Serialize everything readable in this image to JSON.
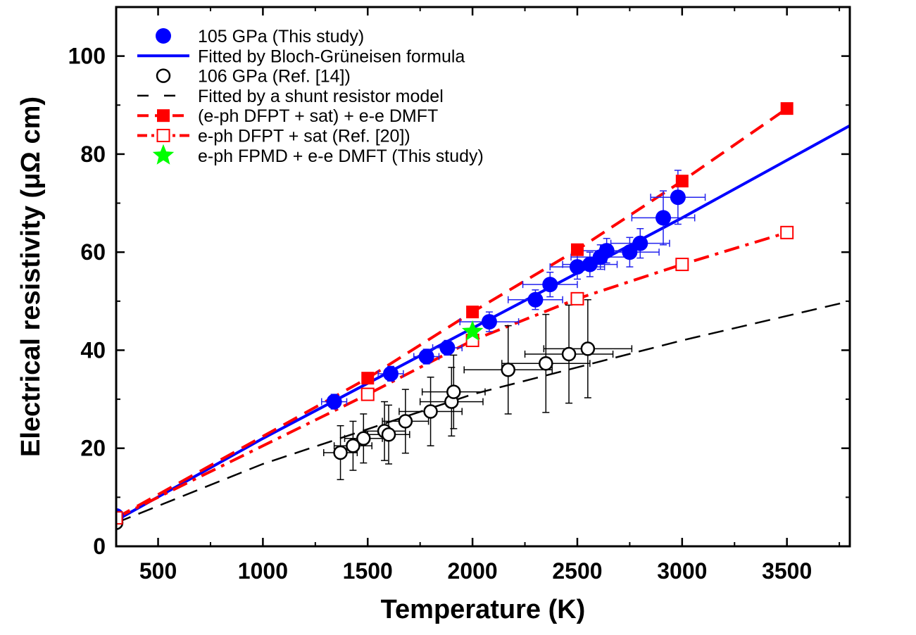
{
  "chart_data": {
    "type": "scatter",
    "xlabel": "Temperature (K)",
    "ylabel": "Electrical resistivity (μΩ cm)",
    "xlim": [
      300,
      3800
    ],
    "ylim": [
      0,
      110
    ],
    "x_ticks": [
      500,
      1000,
      1500,
      2000,
      2500,
      3000,
      3500
    ],
    "y_ticks": [
      0,
      20,
      40,
      60,
      80,
      100
    ],
    "legend_position": "top-left",
    "series": [
      {
        "name": "105 GPa (This study)",
        "kind": "points",
        "marker": "filled-circle",
        "color": "#0000ff",
        "points": [
          {
            "x": 300,
            "y": 6.2
          },
          {
            "x": 1340,
            "y": 29.5,
            "xerr": 60,
            "yerr": 1.5
          },
          {
            "x": 1610,
            "y": 35.2,
            "xerr": 60,
            "yerr": 1.5
          },
          {
            "x": 1780,
            "y": 38.7,
            "xerr": 60,
            "yerr": 1.5
          },
          {
            "x": 1880,
            "y": 40.5,
            "xerr": 70,
            "yerr": 1.5
          },
          {
            "x": 2080,
            "y": 45.8,
            "xerr": 140,
            "yerr": 2.0
          },
          {
            "x": 2300,
            "y": 50.3,
            "xerr": 130,
            "yerr": 2.0
          },
          {
            "x": 2370,
            "y": 53.4,
            "xerr": 130,
            "yerr": 2.5
          },
          {
            "x": 2500,
            "y": 57.0,
            "xerr": 130,
            "yerr": 2.5
          },
          {
            "x": 2560,
            "y": 57.5,
            "xerr": 130,
            "yerr": 2.5
          },
          {
            "x": 2610,
            "y": 59.0,
            "xerr": 140,
            "yerr": 2.5
          },
          {
            "x": 2640,
            "y": 60.3,
            "xerr": 140,
            "yerr": 2.5
          },
          {
            "x": 2750,
            "y": 60.0,
            "xerr": 140,
            "yerr": 3.0
          },
          {
            "x": 2800,
            "y": 61.8,
            "xerr": 140,
            "yerr": 3.0
          },
          {
            "x": 2910,
            "y": 67.0,
            "xerr": 150,
            "yerr": 5.5
          },
          {
            "x": 2980,
            "y": 71.2,
            "xerr": 130,
            "yerr": 5.5
          }
        ]
      },
      {
        "name": "Fitted by Bloch-Grüneisen formula",
        "kind": "line",
        "style": "solid",
        "color": "#0000ff",
        "points": [
          {
            "x": 300,
            "y": 5.3
          },
          {
            "x": 1000,
            "y": 22.0
          },
          {
            "x": 2000,
            "y": 44.5
          },
          {
            "x": 3000,
            "y": 67.0
          },
          {
            "x": 3800,
            "y": 85.8
          }
        ]
      },
      {
        "name": "106 GPa (Ref. [14])",
        "kind": "points",
        "marker": "open-circle",
        "color": "#000000",
        "points": [
          {
            "x": 300,
            "y": 4.8
          },
          {
            "x": 1370,
            "y": 19.1,
            "xerr": 80,
            "yerr": 5.5
          },
          {
            "x": 1430,
            "y": 20.5,
            "xerr": 90,
            "yerr": 5.0
          },
          {
            "x": 1480,
            "y": 22.0,
            "xerr": 90,
            "yerr": 5.0
          },
          {
            "x": 1580,
            "y": 23.5,
            "xerr": 100,
            "yerr": 6.0
          },
          {
            "x": 1600,
            "y": 22.8,
            "xerr": 100,
            "yerr": 6.0
          },
          {
            "x": 1680,
            "y": 25.5,
            "xerr": 110,
            "yerr": 6.5
          },
          {
            "x": 1800,
            "y": 27.5,
            "xerr": 150,
            "yerr": 7.0
          },
          {
            "x": 1900,
            "y": 29.5,
            "xerr": 150,
            "yerr": 7.0
          },
          {
            "x": 1910,
            "y": 31.5,
            "xerr": 150,
            "yerr": 7.5
          },
          {
            "x": 2170,
            "y": 36.0,
            "xerr": 210,
            "yerr": 9.0
          },
          {
            "x": 2350,
            "y": 37.3,
            "xerr": 210,
            "yerr": 10.0
          },
          {
            "x": 2460,
            "y": 39.2,
            "xerr": 210,
            "yerr": 10.0
          },
          {
            "x": 2550,
            "y": 40.3,
            "xerr": 210,
            "yerr": 10.0
          }
        ]
      },
      {
        "name": "Fitted by a shunt resistor model",
        "kind": "line",
        "style": "dashed",
        "color": "#000000",
        "points": [
          {
            "x": 300,
            "y": 4.8
          },
          {
            "x": 1000,
            "y": 16.8
          },
          {
            "x": 2000,
            "y": 31.0
          },
          {
            "x": 3000,
            "y": 42.0
          },
          {
            "x": 3800,
            "y": 50.0
          }
        ]
      },
      {
        "name": "(e-ph DFPT + sat) + e-e DMFT",
        "kind": "points-line",
        "marker": "filled-square",
        "style": "dashed",
        "color": "#ff0000",
        "points": [
          {
            "x": 300,
            "y": 5.8
          },
          {
            "x": 1500,
            "y": 34.3
          },
          {
            "x": 2000,
            "y": 47.8
          },
          {
            "x": 2500,
            "y": 60.5
          },
          {
            "x": 3000,
            "y": 74.5
          },
          {
            "x": 3500,
            "y": 89.3
          }
        ]
      },
      {
        "name": "e-ph DFPT + sat  (Ref. [20])",
        "kind": "points-line",
        "marker": "open-square",
        "style": "dash-dot",
        "color": "#ff0000",
        "points": [
          {
            "x": 300,
            "y": 5.8
          },
          {
            "x": 1500,
            "y": 31.0
          },
          {
            "x": 2000,
            "y": 42.0
          },
          {
            "x": 2500,
            "y": 50.5
          },
          {
            "x": 3000,
            "y": 57.5
          },
          {
            "x": 3500,
            "y": 64.0
          }
        ]
      },
      {
        "name": "e-ph FPMD + e-e DMFT (This study)",
        "kind": "points",
        "marker": "star",
        "color": "#00ff00",
        "points": [
          {
            "x": 2000,
            "y": 43.8
          }
        ]
      }
    ]
  }
}
